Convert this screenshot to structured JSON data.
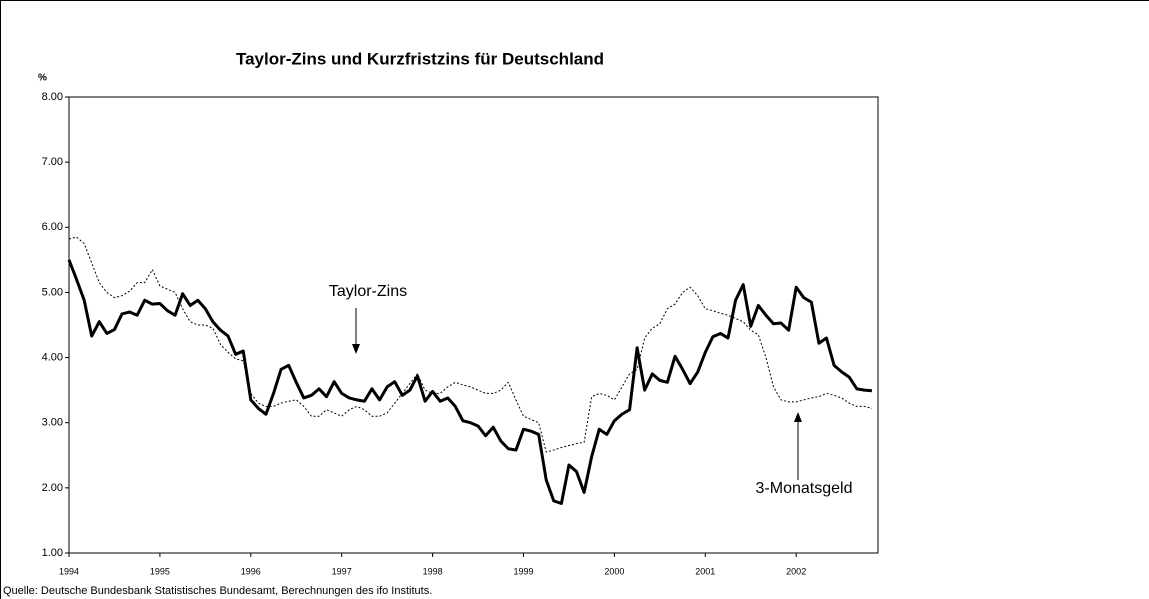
{
  "chart_data": {
    "type": "line",
    "title": "Taylor-Zins und Kurzfristzins für Deutschland",
    "y_label": "%",
    "source": "Quelle: Deutsche Bundesbank Statistisches Bundesamt, Berechnungen des ifo Instituts.",
    "x": [
      1994,
      1994.083,
      1994.167,
      1994.25,
      1994.333,
      1994.417,
      1994.5,
      1994.583,
      1994.667,
      1994.75,
      1994.833,
      1994.917,
      1995,
      1995.083,
      1995.167,
      1995.25,
      1995.333,
      1995.417,
      1995.5,
      1995.583,
      1995.667,
      1995.75,
      1995.833,
      1995.917,
      1996,
      1996.083,
      1996.167,
      1996.25,
      1996.333,
      1996.417,
      1996.5,
      1996.583,
      1996.667,
      1996.75,
      1996.833,
      1996.917,
      1997,
      1997.083,
      1997.167,
      1997.25,
      1997.333,
      1997.417,
      1997.5,
      1997.583,
      1997.667,
      1997.75,
      1997.833,
      1997.917,
      1998,
      1998.083,
      1998.167,
      1998.25,
      1998.333,
      1998.417,
      1998.5,
      1998.583,
      1998.667,
      1998.75,
      1998.833,
      1998.917,
      1999,
      1999.083,
      1999.167,
      1999.25,
      1999.333,
      1999.417,
      1999.5,
      1999.583,
      1999.667,
      1999.75,
      1999.833,
      1999.917,
      2000,
      2000.083,
      2000.167,
      2000.25,
      2000.333,
      2000.417,
      2000.5,
      2000.583,
      2000.667,
      2000.75,
      2000.833,
      2000.917,
      2001,
      2001.083,
      2001.167,
      2001.25,
      2001.333,
      2001.417,
      2001.5,
      2001.583,
      2001.667,
      2001.75,
      2001.833,
      2001.917,
      2002,
      2002.083,
      2002.167,
      2002.25,
      2002.333,
      2002.417,
      2002.5,
      2002.583,
      2002.667,
      2002.75,
      2002.833
    ],
    "series": [
      {
        "name": "Taylor-Zins",
        "color": "#000000",
        "line_style": "solid",
        "line_width": 3,
        "values": [
          5.5,
          5.2,
          4.88,
          4.33,
          4.55,
          4.37,
          4.43,
          4.67,
          4.7,
          4.65,
          4.88,
          4.82,
          4.83,
          4.72,
          4.65,
          4.98,
          4.8,
          4.88,
          4.75,
          4.55,
          4.42,
          4.33,
          4.05,
          4.1,
          3.35,
          3.22,
          3.13,
          3.45,
          3.82,
          3.88,
          3.62,
          3.38,
          3.42,
          3.52,
          3.4,
          3.63,
          3.45,
          3.38,
          3.35,
          3.33,
          3.52,
          3.35,
          3.55,
          3.63,
          3.42,
          3.5,
          3.72,
          3.33,
          3.48,
          3.33,
          3.38,
          3.25,
          3.03,
          3.0,
          2.95,
          2.8,
          2.93,
          2.72,
          2.6,
          2.58,
          2.9,
          2.87,
          2.82,
          2.12,
          1.8,
          1.76,
          2.35,
          2.25,
          1.93,
          2.48,
          2.9,
          2.82,
          3.03,
          3.13,
          3.2,
          4.15,
          3.5,
          3.75,
          3.65,
          3.62,
          4.02,
          3.82,
          3.6,
          3.78,
          4.08,
          4.32,
          4.37,
          4.3,
          4.88,
          5.12,
          4.48,
          4.8,
          4.65,
          4.52,
          4.53,
          4.42,
          5.08,
          4.92,
          4.85,
          4.22,
          4.3,
          3.88,
          3.78,
          3.7,
          3.52,
          3.5,
          3.49
        ]
      },
      {
        "name": "3-Monatsgeld",
        "color": "#000000",
        "line_style": "dotted",
        "line_width": 1,
        "values": [
          5.82,
          5.85,
          5.75,
          5.45,
          5.15,
          5.0,
          4.92,
          4.95,
          5.02,
          5.15,
          5.15,
          5.35,
          5.1,
          5.05,
          5.0,
          4.75,
          4.55,
          4.5,
          4.5,
          4.45,
          4.2,
          4.08,
          3.98,
          3.95,
          3.45,
          3.3,
          3.25,
          3.25,
          3.3,
          3.33,
          3.35,
          3.25,
          3.1,
          3.1,
          3.2,
          3.15,
          3.1,
          3.2,
          3.25,
          3.2,
          3.1,
          3.1,
          3.15,
          3.3,
          3.45,
          3.6,
          3.75,
          3.5,
          3.45,
          3.45,
          3.55,
          3.62,
          3.58,
          3.55,
          3.5,
          3.45,
          3.45,
          3.5,
          3.62,
          3.35,
          3.1,
          3.05,
          3.0,
          2.55,
          2.58,
          2.62,
          2.65,
          2.68,
          2.7,
          3.4,
          3.45,
          3.42,
          3.35,
          3.55,
          3.75,
          3.82,
          4.3,
          4.45,
          4.52,
          4.75,
          4.82,
          5.0,
          5.08,
          4.95,
          4.75,
          4.72,
          4.68,
          4.65,
          4.6,
          4.55,
          4.42,
          4.35,
          4.0,
          3.55,
          3.35,
          3.32,
          3.32,
          3.35,
          3.38,
          3.4,
          3.45,
          3.42,
          3.38,
          3.3,
          3.25,
          3.25,
          3.22
        ]
      }
    ],
    "xlim": [
      1994,
      2002.9
    ],
    "xticks": [
      1994,
      1995,
      1996,
      1997,
      1998,
      1999,
      2000,
      2001,
      2002
    ],
    "ylim": [
      1,
      8
    ],
    "yticks": [
      {
        "value": 1,
        "label": "1.00"
      },
      {
        "value": 2,
        "label": "2.00"
      },
      {
        "value": 3,
        "label": "3.00"
      },
      {
        "value": 4,
        "label": "4.00"
      },
      {
        "value": 5,
        "label": "5.00"
      },
      {
        "value": 6,
        "label": "6.00"
      },
      {
        "value": 7,
        "label": "7.00"
      },
      {
        "value": 8,
        "label": "8.00"
      }
    ],
    "grid": false
  }
}
